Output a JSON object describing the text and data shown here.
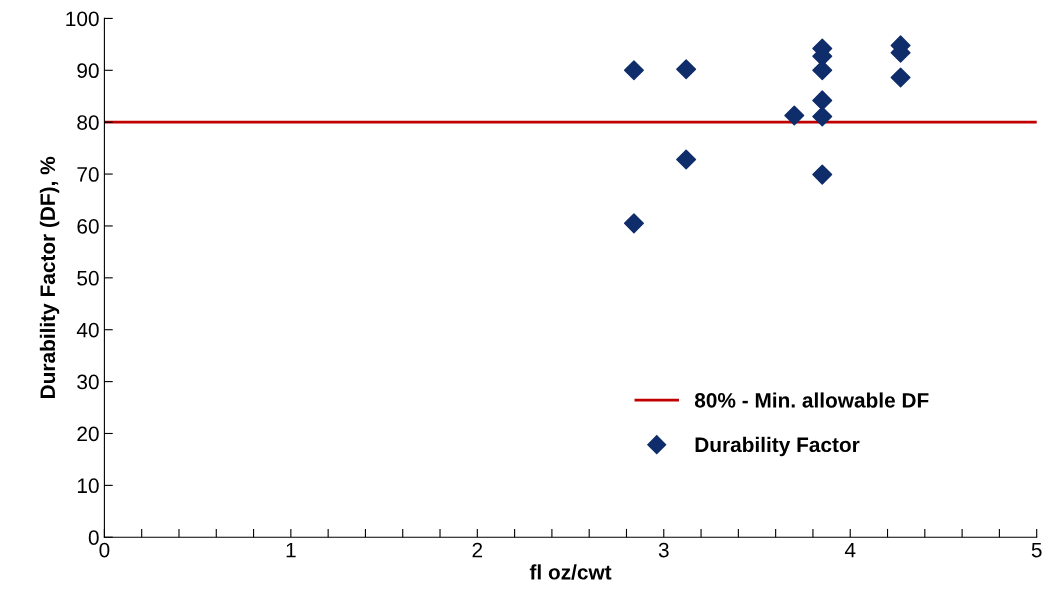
{
  "chart_data": {
    "type": "scatter",
    "xlabel": "fl oz/cwt",
    "ylabel": "Durability Factor (DF), %",
    "xlim": [
      0,
      5
    ],
    "ylim": [
      0,
      100
    ],
    "xticks": [
      0,
      {
        "value": 0.2,
        "label": null
      },
      {
        "value": 0.4,
        "label": null
      },
      {
        "value": 0.6,
        "label": null
      },
      {
        "value": 0.8,
        "label": null
      },
      1,
      {
        "value": 1.2,
        "label": null
      },
      {
        "value": 1.4,
        "label": null
      },
      {
        "value": 1.6,
        "label": null
      },
      {
        "value": 1.8,
        "label": null
      },
      2,
      {
        "value": 2.2,
        "label": null
      },
      {
        "value": 2.4,
        "label": null
      },
      {
        "value": 2.6,
        "label": null
      },
      {
        "value": 2.8,
        "label": null
      },
      3,
      {
        "value": 3.2,
        "label": null
      },
      {
        "value": 3.4,
        "label": null
      },
      {
        "value": 3.6,
        "label": null
      },
      {
        "value": 3.8,
        "label": null
      },
      4,
      {
        "value": 4.2,
        "label": null
      },
      {
        "value": 4.4,
        "label": null
      },
      {
        "value": 4.6,
        "label": null
      },
      {
        "value": 4.8,
        "label": null
      },
      5
    ],
    "yticks": [
      0,
      10,
      20,
      30,
      40,
      50,
      60,
      70,
      80,
      90,
      100
    ],
    "series": [
      {
        "name": "Durability Factor",
        "color": "#0f2d6b",
        "x": [
          2.84,
          2.84,
          3.12,
          3.12,
          3.7,
          3.85,
          3.85,
          3.85,
          3.85,
          3.85,
          3.85,
          4.27,
          4.27,
          4.27
        ],
        "values": [
          90.0,
          60.5,
          90.2,
          72.8,
          81.3,
          94.2,
          92.7,
          90.0,
          84.2,
          81.1,
          69.9,
          94.8,
          93.4,
          88.6
        ]
      }
    ],
    "ref_lines": [
      {
        "axis": "y",
        "value": 80,
        "label": "80% - Min. allowable DF",
        "color": "#c00000",
        "line_style": "solid"
      }
    ],
    "marker": "diamond",
    "grid": false,
    "legend": "bottom right"
  }
}
